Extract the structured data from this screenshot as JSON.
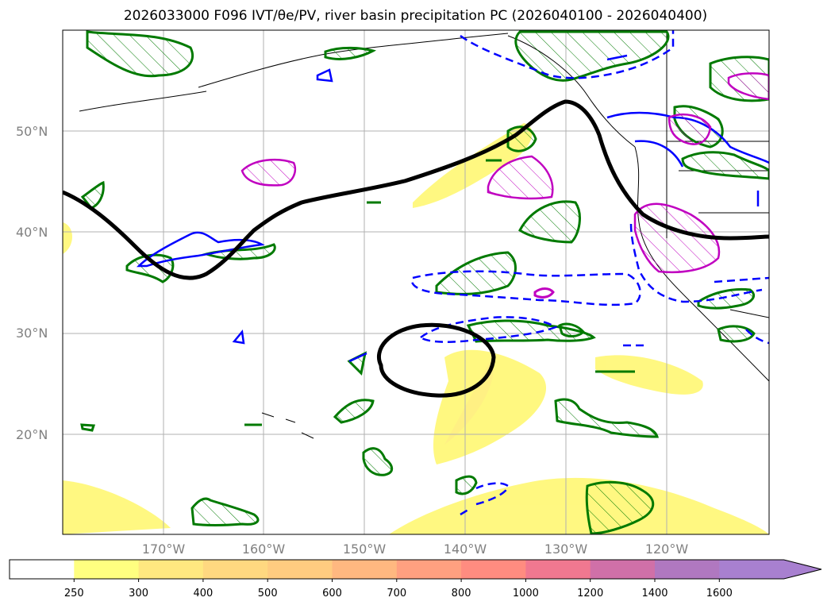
{
  "title": "2026033000 F096 IVT/θe/PV, river basin precipitation PC (2026040100 - 2026040400)",
  "latitude_labels": [
    "50°N",
    "40°N",
    "30°N",
    "20°N"
  ],
  "longitude_labels": [
    "170°W",
    "160°W",
    "150°W",
    "140°W",
    "130°W",
    "120°W"
  ],
  "colorbar": {
    "ticks": [
      "250",
      "300",
      "400",
      "500",
      "600",
      "700",
      "800",
      "1000",
      "1200",
      "1400",
      "1600"
    ],
    "colors": [
      "#ffffff",
      "#ffff80",
      "#ffe880",
      "#ffd880",
      "#ffcc80",
      "#ffb880",
      "#ffa080",
      "#ff8c80",
      "#f07890",
      "#d070a8",
      "#b078c0",
      "#a880d0"
    ],
    "extend": "max"
  },
  "map_colors": {
    "ivt_fill": "#fff87a",
    "theta_e_contour": "#000000",
    "precip_positive": "#007a00",
    "pv_contour": "#0000ff",
    "magenta_contour": "#c000c0",
    "coastline": "#000000",
    "grid": "#b0b0b0"
  }
}
